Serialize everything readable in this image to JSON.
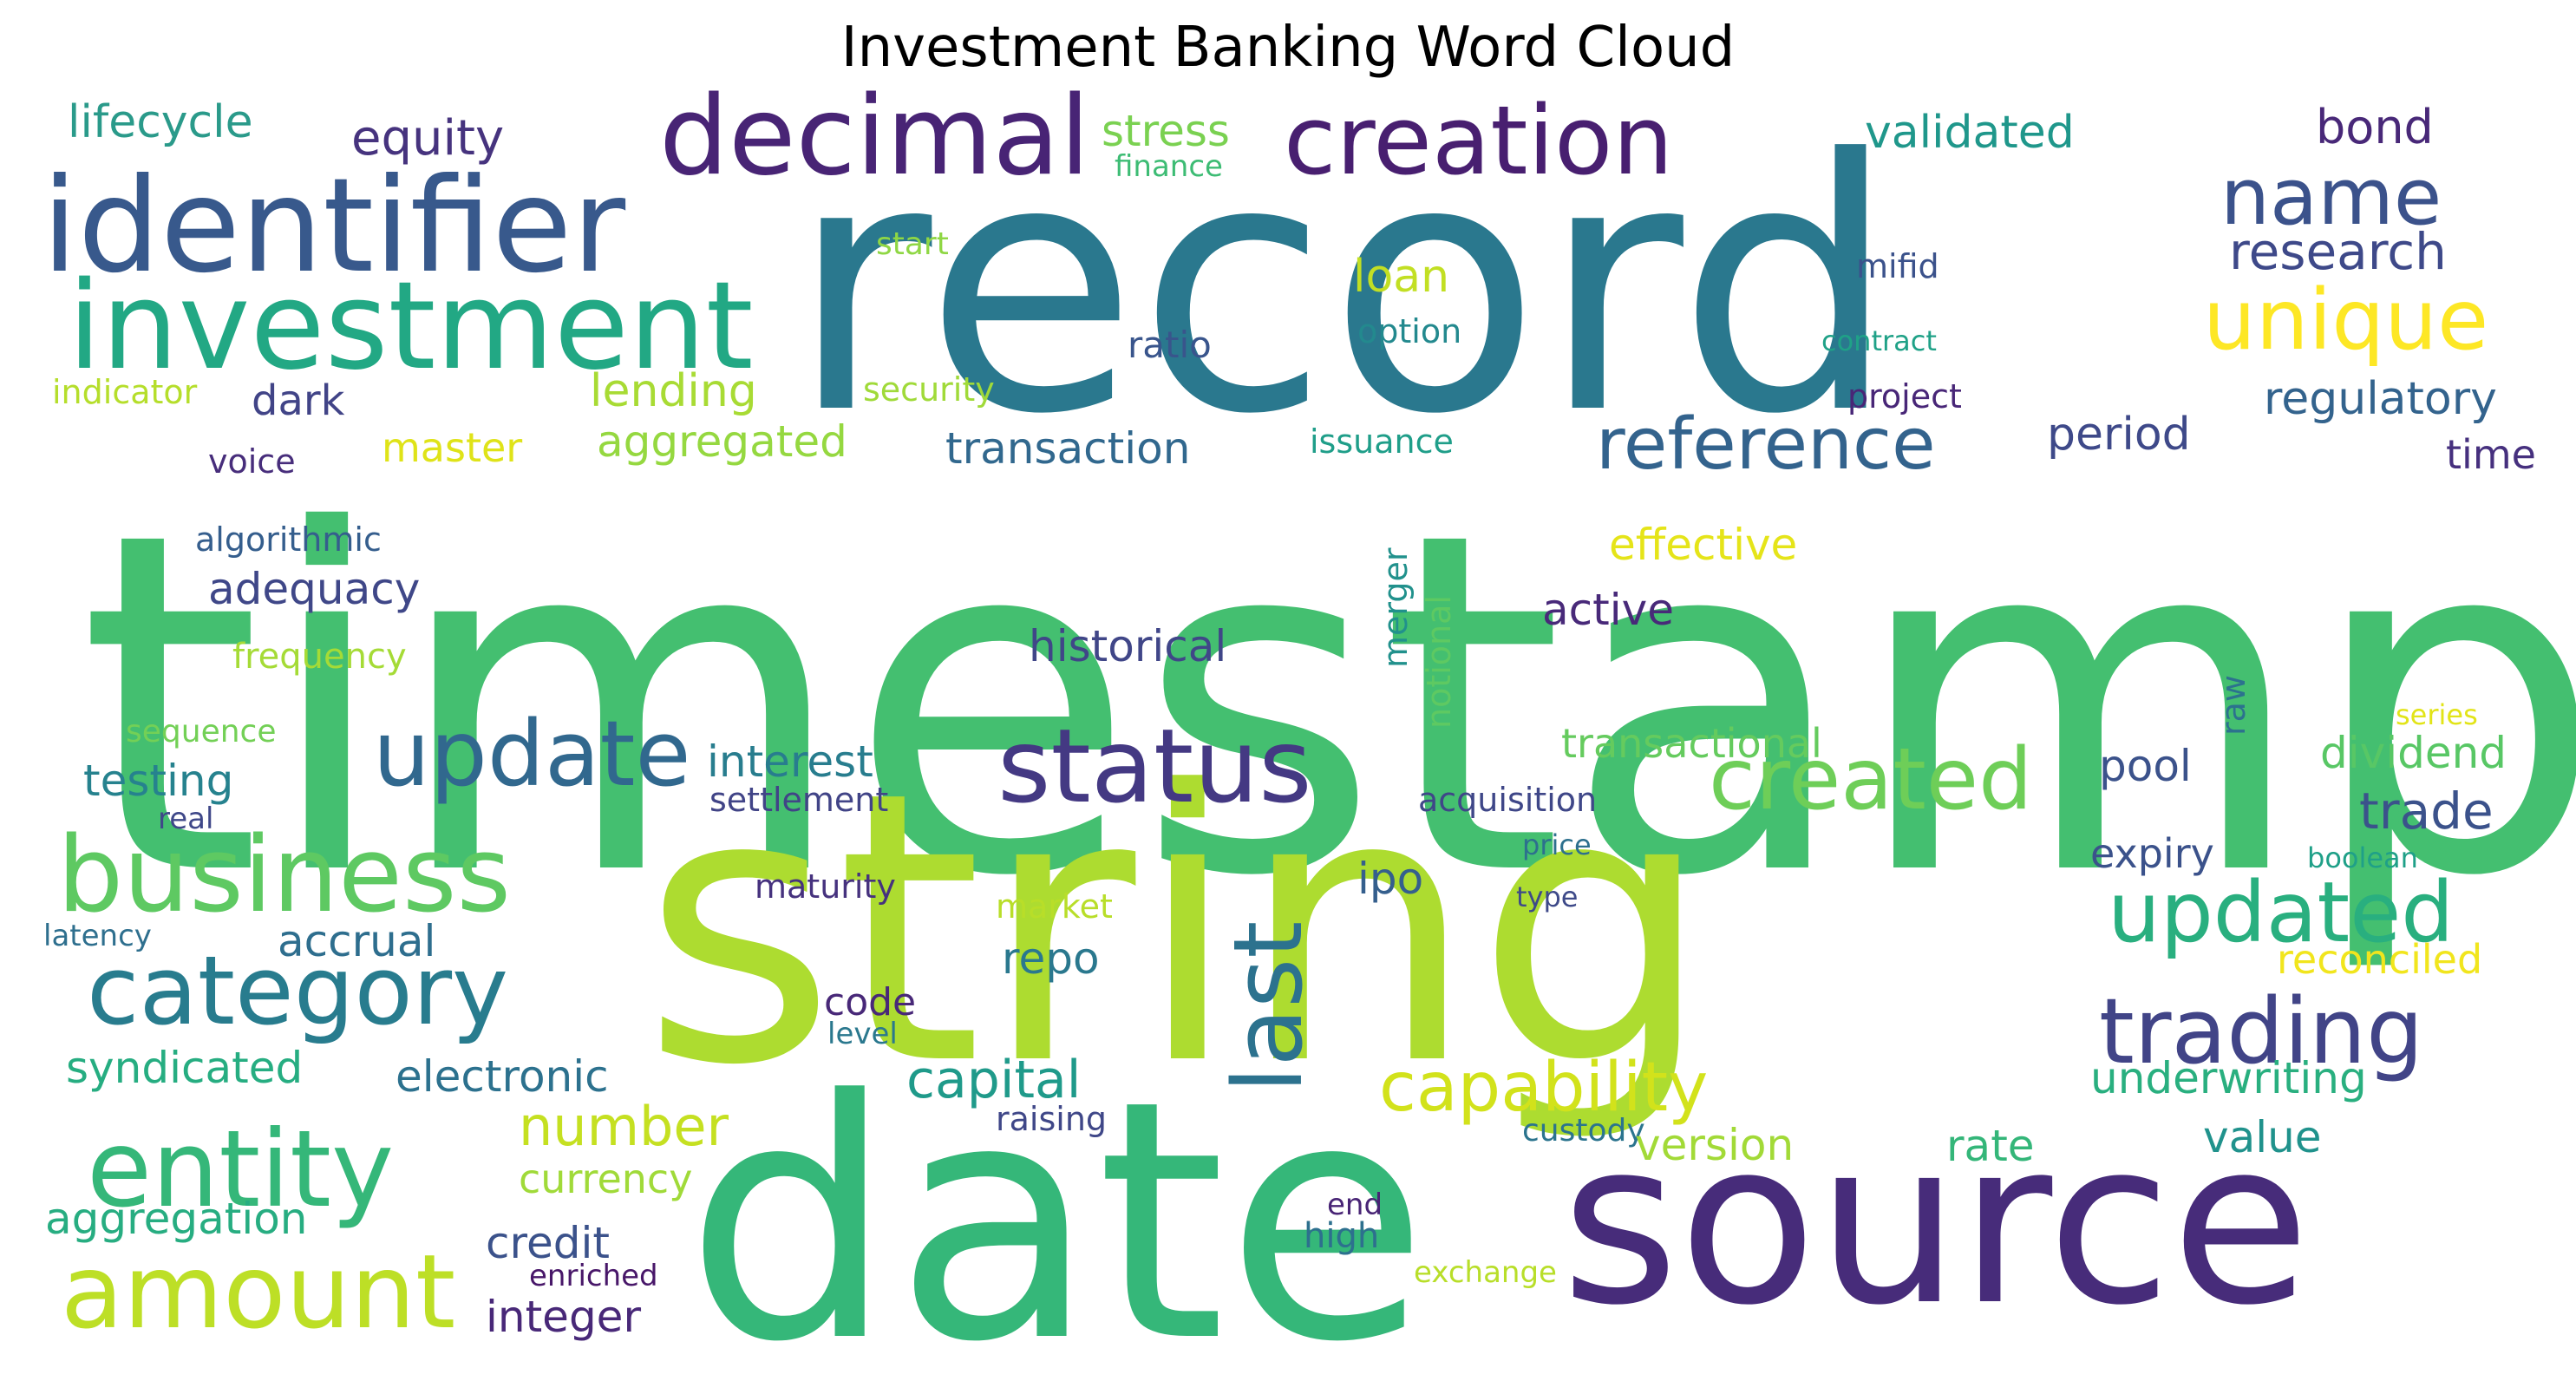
{
  "chart_data": {
    "type": "wordcloud",
    "title": "Investment Banking Word Cloud",
    "colormap": "viridis",
    "words": [
      {
        "text": "timestamp",
        "color": "#44bf70"
      },
      {
        "text": "record",
        "color": "#2a788e"
      },
      {
        "text": "string",
        "color": "#addc30"
      },
      {
        "text": "date",
        "color": "#35b779"
      },
      {
        "text": "source",
        "color": "#472c7a"
      },
      {
        "text": "identifier",
        "color": "#38598c"
      },
      {
        "text": "investment",
        "color": "#22a884"
      },
      {
        "text": "decimal",
        "color": "#482475"
      },
      {
        "text": "creation",
        "color": "#481f70"
      },
      {
        "text": "category",
        "color": "#287c8e"
      },
      {
        "text": "business",
        "color": "#5ec962"
      },
      {
        "text": "entity",
        "color": "#35b779"
      },
      {
        "text": "status",
        "color": "#443983"
      },
      {
        "text": "update",
        "color": "#31688e"
      },
      {
        "text": "amount",
        "color": "#bddf26"
      },
      {
        "text": "created",
        "color": "#6ece58"
      },
      {
        "text": "updated",
        "color": "#29af7f"
      },
      {
        "text": "name",
        "color": "#3b528b"
      },
      {
        "text": "unique",
        "color": "#fde725"
      },
      {
        "text": "reference",
        "color": "#33638d"
      },
      {
        "text": "trading",
        "color": "#414487"
      },
      {
        "text": "last",
        "color": "#2c728e"
      },
      {
        "text": "capability",
        "color": "#d2e21b"
      },
      {
        "text": "research",
        "color": "#3e4989"
      },
      {
        "text": "lifecycle",
        "color": "#2a9a8a"
      },
      {
        "text": "equity",
        "color": "#46337e"
      },
      {
        "text": "stress",
        "color": "#7ad151"
      },
      {
        "text": "finance",
        "color": "#3dbc74"
      },
      {
        "text": "validated",
        "color": "#1f978b"
      },
      {
        "text": "bond",
        "color": "#482878"
      },
      {
        "text": "start",
        "color": "#8fd744"
      },
      {
        "text": "loan",
        "color": "#c2df23"
      },
      {
        "text": "mifid",
        "color": "#3b528b"
      },
      {
        "text": "ratio",
        "color": "#39558c"
      },
      {
        "text": "option",
        "color": "#23898e"
      },
      {
        "text": "contract",
        "color": "#1fa187"
      },
      {
        "text": "indicator",
        "color": "#b5de2b"
      },
      {
        "text": "dark",
        "color": "#414487"
      },
      {
        "text": "lending",
        "color": "#a8db34"
      },
      {
        "text": "security",
        "color": "#a0da39"
      },
      {
        "text": "project",
        "color": "#482677"
      },
      {
        "text": "regulatory",
        "color": "#33638d"
      },
      {
        "text": "voice",
        "color": "#472d7b"
      },
      {
        "text": "master",
        "color": "#dfe318"
      },
      {
        "text": "aggregated",
        "color": "#95d840"
      },
      {
        "text": "transaction",
        "color": "#31688e"
      },
      {
        "text": "issuance",
        "color": "#1f9e89"
      },
      {
        "text": "period",
        "color": "#3e4989"
      },
      {
        "text": "time",
        "color": "#46307e"
      },
      {
        "text": "algorithmic",
        "color": "#355e8d"
      },
      {
        "text": "effective",
        "color": "#e5e419"
      },
      {
        "text": "merger",
        "color": "#21918c"
      },
      {
        "text": "adequacy",
        "color": "#3f4788"
      },
      {
        "text": "active",
        "color": "#482979"
      },
      {
        "text": "notional",
        "color": "#5ec962"
      },
      {
        "text": "frequency",
        "color": "#a5db36"
      },
      {
        "text": "historical",
        "color": "#404688"
      },
      {
        "text": "raw",
        "color": "#2c728e"
      },
      {
        "text": "sequence",
        "color": "#73d056"
      },
      {
        "text": "interest",
        "color": "#287d8e"
      },
      {
        "text": "transactional",
        "color": "#65cb5e"
      },
      {
        "text": "series",
        "color": "#e2e418"
      },
      {
        "text": "testing",
        "color": "#26828e"
      },
      {
        "text": "dividend",
        "color": "#58c765"
      },
      {
        "text": "pool",
        "color": "#3b528b"
      },
      {
        "text": "real",
        "color": "#3f4889"
      },
      {
        "text": "settlement",
        "color": "#414487"
      },
      {
        "text": "acquisition",
        "color": "#3f4788"
      },
      {
        "text": "trade",
        "color": "#3b528b"
      },
      {
        "text": "price",
        "color": "#2d708e"
      },
      {
        "text": "expiry",
        "color": "#3b528b"
      },
      {
        "text": "boolean",
        "color": "#1fa088"
      },
      {
        "text": "ipo",
        "color": "#355f8d"
      },
      {
        "text": "maturity",
        "color": "#46327e"
      },
      {
        "text": "type",
        "color": "#3e4a89"
      },
      {
        "text": "market",
        "color": "#b8de29"
      },
      {
        "text": "latency",
        "color": "#2e6f8e"
      },
      {
        "text": "accrual",
        "color": "#2e6e8e"
      },
      {
        "text": "reconciled",
        "color": "#f1e51d"
      },
      {
        "text": "repo",
        "color": "#2a788e"
      },
      {
        "text": "code",
        "color": "#482878"
      },
      {
        "text": "level",
        "color": "#2a788e"
      },
      {
        "text": "syndicated",
        "color": "#26ad81"
      },
      {
        "text": "electronic",
        "color": "#2c718e"
      },
      {
        "text": "capital",
        "color": "#1f9a8a"
      },
      {
        "text": "underwriting",
        "color": "#29af7f"
      },
      {
        "text": "raising",
        "color": "#3f4788"
      },
      {
        "text": "number",
        "color": "#c5e021"
      },
      {
        "text": "custody",
        "color": "#2b748e"
      },
      {
        "text": "version",
        "color": "#a2da37"
      },
      {
        "text": "value",
        "color": "#20928c"
      },
      {
        "text": "currency",
        "color": "#a0da39"
      },
      {
        "text": "rate",
        "color": "#34b679"
      },
      {
        "text": "aggregation",
        "color": "#27ad81"
      },
      {
        "text": "credit",
        "color": "#3b528b"
      },
      {
        "text": "end",
        "color": "#482475"
      },
      {
        "text": "high",
        "color": "#2d708e"
      },
      {
        "text": "enriched",
        "color": "#481769"
      },
      {
        "text": "exchange",
        "color": "#b8de29"
      },
      {
        "text": "integer",
        "color": "#482878"
      }
    ]
  }
}
